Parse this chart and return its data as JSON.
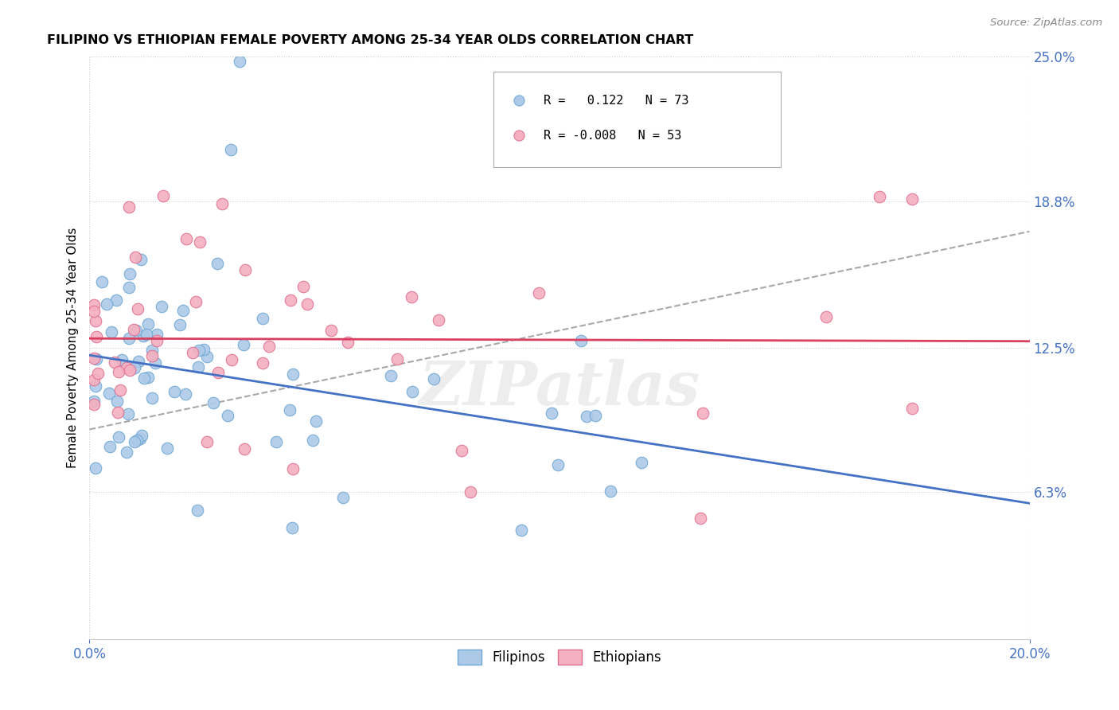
{
  "title": "FILIPINO VS ETHIOPIAN FEMALE POVERTY AMONG 25-34 YEAR OLDS CORRELATION CHART",
  "source": "Source: ZipAtlas.com",
  "ylabel": "Female Poverty Among 25-34 Year Olds",
  "xlim": [
    0.0,
    0.2
  ],
  "ylim": [
    0.0,
    0.25
  ],
  "ytick_positions": [
    0.0,
    0.063,
    0.125,
    0.188,
    0.25
  ],
  "ytick_labels": [
    "",
    "6.3%",
    "12.5%",
    "18.8%",
    "25.0%"
  ],
  "filipino_color": "#adc9e8",
  "ethiopian_color": "#f4b0c0",
  "filipino_edge": "#6fa8d4",
  "ethiopian_edge": "#e07090",
  "trend_filipino_color": "#4472c4",
  "trend_ethiopian_color": "#d94060",
  "dashed_line_color": "#999999",
  "watermark": "ZIPatlas",
  "legend_r_filipino": "R =   0.122",
  "legend_n_filipino": "N = 73",
  "legend_r_ethiopian": "R = -0.008",
  "legend_n_ethiopian": "N = 53"
}
